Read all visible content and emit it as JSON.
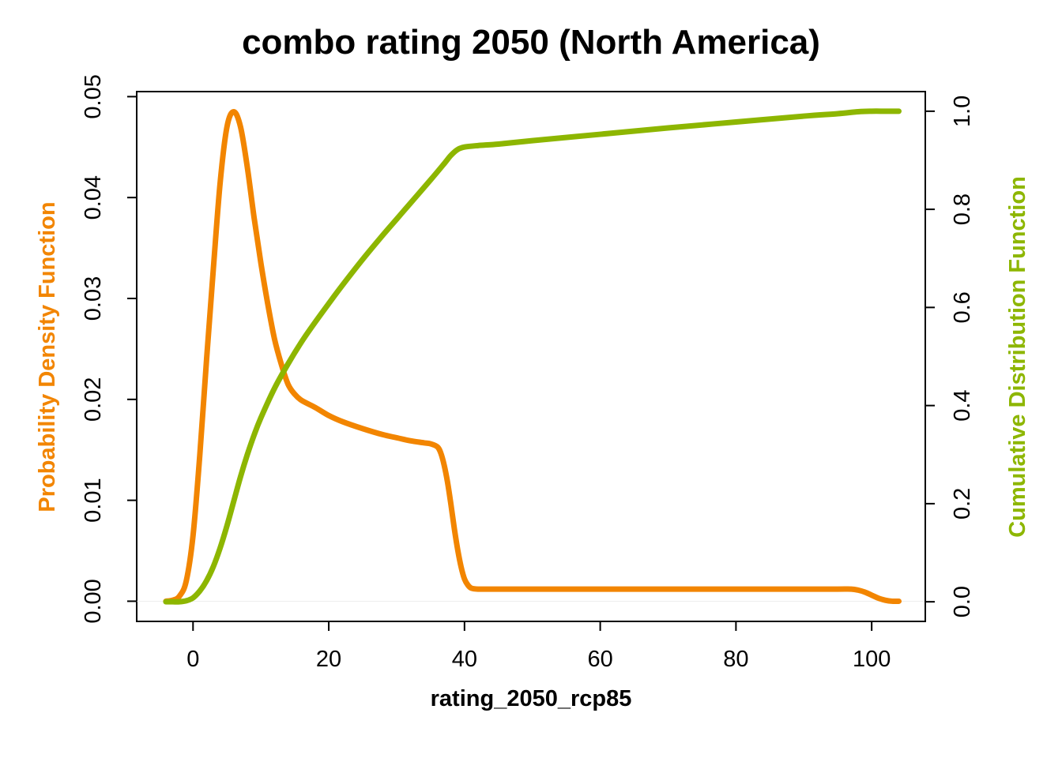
{
  "chart_data": {
    "type": "line",
    "title": "combo rating 2050 (North America)",
    "xlabel": "rating_2050_rcp85",
    "ylabel_left": "Probability Density Function",
    "ylabel_right": "Cumulative Distribution Function",
    "xlim": [
      -8.3,
      107.9
    ],
    "ylim_left": [
      -0.002,
      0.0505
    ],
    "ylim_right": [
      -0.04,
      1.04
    ],
    "x_ticks": [
      0,
      20,
      40,
      60,
      80,
      100
    ],
    "x_tick_labels": [
      "0",
      "20",
      "40",
      "60",
      "80",
      "100"
    ],
    "y_left_ticks": [
      0,
      0.01,
      0.02,
      0.03,
      0.04,
      0.05
    ],
    "y_left_tick_labels": [
      "0.00",
      "0.01",
      "0.02",
      "0.03",
      "0.04",
      "0.05"
    ],
    "y_right_ticks": [
      0,
      0.2,
      0.4,
      0.6,
      0.8,
      1.0
    ],
    "y_right_tick_labels": [
      "0.0",
      "0.2",
      "0.4",
      "0.6",
      "0.8",
      "1.0"
    ],
    "colors": {
      "pdf": "#f28500",
      "cdf": "#8db600"
    },
    "series": [
      {
        "name": "Probability Density Function",
        "axis": "left",
        "x": [
          -4,
          -3,
          -2,
          -1,
          0,
          1,
          2,
          3,
          4,
          5,
          6,
          7,
          8,
          9,
          10,
          11,
          12,
          13,
          14,
          15,
          16,
          18,
          20,
          22,
          25,
          28,
          30,
          32,
          34,
          35,
          36,
          36.5,
          37,
          37.5,
          38,
          38.5,
          39,
          39.5,
          40,
          40.5,
          41,
          42,
          44,
          50,
          60,
          70,
          80,
          90,
          95,
          97,
          98,
          99,
          100,
          101,
          102,
          103,
          104
        ],
        "values": [
          0.0,
          0.0001,
          0.0005,
          0.002,
          0.0065,
          0.0145,
          0.024,
          0.033,
          0.0415,
          0.047,
          0.0485,
          0.047,
          0.043,
          0.038,
          0.0335,
          0.0295,
          0.026,
          0.0235,
          0.0215,
          0.0205,
          0.0199,
          0.0192,
          0.0184,
          0.0178,
          0.0171,
          0.0165,
          0.0162,
          0.0159,
          0.0157,
          0.0156,
          0.0153,
          0.0147,
          0.0135,
          0.0118,
          0.0096,
          0.0072,
          0.0051,
          0.0034,
          0.0022,
          0.0016,
          0.0013,
          0.0012,
          0.0012,
          0.0012,
          0.0012,
          0.0012,
          0.0012,
          0.0012,
          0.0012,
          0.0012,
          0.0011,
          0.0009,
          0.0006,
          0.0003,
          0.0001,
          0.0,
          0.0
        ]
      },
      {
        "name": "Cumulative Distribution Function",
        "axis": "right",
        "x": [
          -4,
          -3,
          -2,
          -1,
          0,
          1,
          2,
          3,
          4,
          5,
          6,
          7,
          8,
          9,
          10,
          12,
          14,
          16,
          18,
          20,
          22,
          25,
          28,
          30,
          32,
          35,
          37,
          38,
          39,
          40,
          42,
          45,
          50,
          60,
          70,
          80,
          90,
          95,
          98,
          100,
          102,
          104
        ],
        "values": [
          0.0,
          0.0,
          0.0,
          0.002,
          0.008,
          0.022,
          0.043,
          0.072,
          0.11,
          0.155,
          0.205,
          0.255,
          0.3,
          0.34,
          0.375,
          0.435,
          0.485,
          0.53,
          0.57,
          0.608,
          0.645,
          0.698,
          0.748,
          0.78,
          0.812,
          0.86,
          0.893,
          0.91,
          0.922,
          0.927,
          0.93,
          0.933,
          0.94,
          0.953,
          0.966,
          0.978,
          0.99,
          0.995,
          0.999,
          1.0,
          1.0,
          1.0
        ]
      }
    ]
  }
}
